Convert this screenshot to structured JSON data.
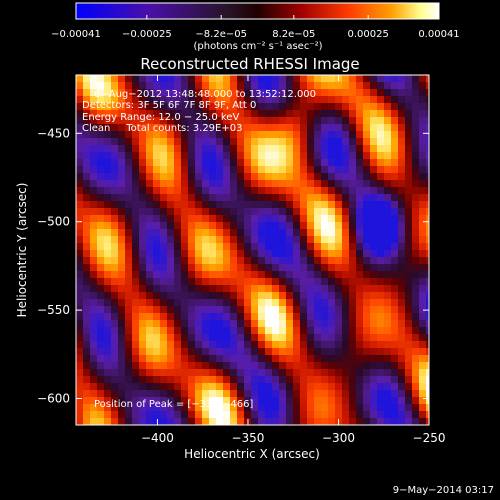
{
  "chart_data": {
    "type": "heatmap",
    "title": "Reconstructed RHESSI Image",
    "xlabel": "Heliocentric X (arcsec)",
    "ylabel": "Heliocentric Y (arcsec)",
    "xlim": [
      -445,
      -250
    ],
    "ylim": [
      -615,
      -417
    ],
    "x_ticks": [
      -400,
      -350,
      -300,
      -250
    ],
    "x_tick_labels": [
      "−400",
      "−350",
      "−300",
      "−250"
    ],
    "y_ticks": [
      -450,
      -500,
      -550,
      -600
    ],
    "y_tick_labels": [
      "−450",
      "−500",
      "−550",
      "−600"
    ],
    "colorbar": {
      "range": [
        -0.00041,
        0.00041
      ],
      "ticks": [
        -0.00041,
        -0.00025,
        -8.2e-05,
        8.2e-05,
        0.00025,
        0.00041
      ],
      "tick_labels": [
        "−0.00041",
        "−0.00025",
        "−8.2e−05",
        "8.2e−05",
        "0.00025",
        "0.00041"
      ],
      "unit_label": "(photons cm⁻² s⁻¹ asec⁻²)",
      "colors": [
        "#0000ff",
        "#5a0d9a",
        "#2a1a2a",
        "#7a0000",
        "#ff3c00",
        "#ff9900",
        "#ffffaa",
        "#ffffff"
      ]
    },
    "annotations": [
      "6−Aug−2012 13:48:48.000 to 13:52:12.000",
      "Detectors: 3F 5F 6F 7F 8F 9F, Att 0",
      "Energy Range: 12.0 − 25.0 keV",
      "Clean     Total counts: 3.29E+03"
    ],
    "peak_label": "Position of Peak = [−335,−466]",
    "peak": [
      -335,
      -466
    ],
    "grid": false
  },
  "footer": {
    "date": "9−May−2014 03:17"
  }
}
